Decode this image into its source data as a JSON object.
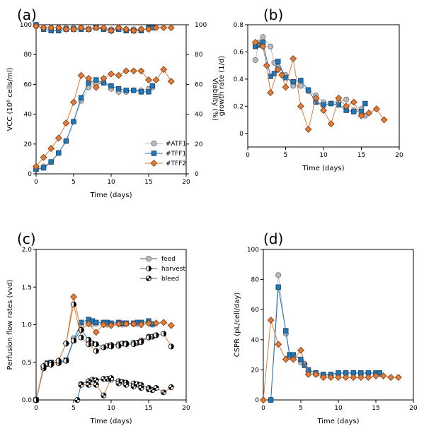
{
  "chart_data": [
    {
      "type": "line",
      "panel_label": "(a)",
      "xlabel": "Time (days)",
      "ylabel": "VCC (10⁶ cells/ml)",
      "y2label": "Viability (%)",
      "xlim": [
        0,
        20
      ],
      "ylim": [
        0,
        100
      ],
      "y2lim": [
        0,
        100
      ],
      "xticks": [
        0,
        5,
        10,
        15,
        20
      ],
      "yticks": [
        0,
        20,
        40,
        60,
        80,
        100
      ],
      "y2ticks": [
        0,
        20,
        40,
        60,
        80,
        100
      ],
      "legend_position": "bottom-right",
      "legend": [
        "#ATF1",
        "#TFF1",
        "#TFF2"
      ],
      "series": [
        {
          "name": "#ATF1",
          "color": "#b9bcbf",
          "marker": "circle",
          "axis": "y",
          "x": [
            0,
            1,
            2,
            3,
            4,
            5,
            6,
            7,
            8,
            9,
            10,
            11,
            12,
            13,
            14,
            15,
            15.5
          ],
          "y": [
            3,
            5,
            8,
            14,
            22,
            35,
            49,
            58,
            60,
            61,
            57,
            55,
            55,
            56,
            56,
            57,
            58
          ]
        },
        {
          "name": "#TFF1",
          "color": "#1f77b4",
          "marker": "square",
          "axis": "y",
          "x": [
            0,
            1,
            2,
            3,
            4,
            5,
            6,
            7,
            8,
            9,
            10,
            11,
            12,
            13,
            14,
            15,
            15.5
          ],
          "y": [
            3,
            4,
            8,
            14,
            22,
            35,
            51,
            61,
            63,
            61,
            59,
            57,
            56,
            56,
            55,
            55,
            59
          ]
        },
        {
          "name": "#TFF2",
          "color": "#e07b39",
          "marker": "diamond",
          "axis": "y",
          "x": [
            0,
            1,
            2,
            3,
            4,
            5,
            6,
            7,
            8,
            9,
            10,
            11,
            12,
            13,
            14,
            15,
            16,
            17,
            18
          ],
          "y": [
            5,
            11,
            17,
            24,
            34,
            48,
            66,
            64,
            58,
            64,
            67,
            66,
            69,
            69,
            69,
            63,
            63,
            70,
            62
          ]
        },
        {
          "name": "#ATF1",
          "color": "#b9bcbf",
          "marker": "circle",
          "axis": "y2",
          "x": [
            0,
            1,
            2,
            3,
            4,
            5,
            6,
            7,
            8,
            9,
            10,
            11,
            12,
            13,
            14,
            15,
            15.5
          ],
          "y": [
            99,
            98,
            98,
            98,
            98,
            98,
            98,
            97,
            98,
            97,
            97,
            98,
            97,
            97,
            97,
            97,
            98
          ]
        },
        {
          "name": "#TFF1",
          "color": "#1f77b4",
          "marker": "square",
          "axis": "y2",
          "x": [
            0,
            1,
            2,
            3,
            4,
            5,
            6,
            7,
            8,
            9,
            10,
            11,
            12,
            13,
            14,
            15,
            15.5
          ],
          "y": [
            100,
            97,
            96,
            96,
            97,
            97,
            97,
            97,
            98,
            97,
            96,
            97,
            96,
            96,
            96,
            98,
            98
          ]
        },
        {
          "name": "#TFF2",
          "color": "#e07b39",
          "marker": "diamond",
          "axis": "y2",
          "x": [
            0,
            1,
            2,
            3,
            4,
            5,
            6,
            7,
            8,
            9,
            10,
            11,
            12,
            13,
            14,
            15,
            16,
            17,
            18
          ],
          "y": [
            99,
            98,
            98,
            98,
            97,
            97,
            98,
            97,
            98,
            98,
            96,
            98,
            97,
            96,
            97,
            97,
            98,
            98,
            98
          ]
        }
      ]
    },
    {
      "type": "line",
      "panel_label": "(b)",
      "xlabel": "Time (days)",
      "ylabel": "growth rate (1/d)",
      "xlim": [
        0,
        20
      ],
      "ylim": [
        -0.1,
        0.8
      ],
      "xticks": [
        0,
        5,
        10,
        15,
        20
      ],
      "yticks": [
        0.0,
        0.2,
        0.4,
        0.6,
        0.8
      ],
      "series": [
        {
          "name": "#ATF1",
          "color": "#b9bcbf",
          "marker": "circle",
          "x": [
            1,
            1.5,
            2,
            3,
            3.5,
            4,
            5,
            6,
            7,
            8,
            9,
            10,
            11,
            12,
            13,
            14,
            15,
            15.5
          ],
          "y": [
            0.54,
            0.67,
            0.71,
            0.64,
            0.52,
            0.49,
            0.43,
            0.35,
            0.35,
            0.31,
            0.28,
            0.23,
            0.22,
            0.23,
            0.25,
            0.17,
            0.18,
            0.13
          ]
        },
        {
          "name": "#TFF1",
          "color": "#1f77b4",
          "marker": "square",
          "x": [
            1,
            1.5,
            2,
            3,
            3.5,
            4,
            5,
            6,
            7,
            8,
            9,
            10,
            11,
            12,
            13,
            14,
            15,
            15.5
          ],
          "y": [
            0.64,
            0.65,
            0.67,
            0.42,
            0.44,
            0.53,
            0.41,
            0.38,
            0.39,
            0.32,
            0.23,
            0.21,
            0.22,
            0.21,
            0.17,
            0.16,
            0.16,
            0.22
          ]
        },
        {
          "name": "#TFF2",
          "color": "#e07b39",
          "marker": "diamond",
          "x": [
            1,
            2,
            2.5,
            3,
            4,
            4.5,
            5,
            6,
            7,
            8,
            9,
            10,
            11,
            12,
            13,
            14,
            15,
            16,
            17,
            18
          ],
          "y": [
            0.67,
            0.64,
            0.5,
            0.3,
            0.47,
            0.43,
            0.34,
            0.55,
            0.2,
            0.03,
            0.26,
            0.17,
            0.07,
            0.26,
            0.2,
            0.23,
            0.13,
            0.15,
            0.18,
            0.1
          ]
        }
      ]
    },
    {
      "type": "line",
      "panel_label": "(c)",
      "xlabel": "Time (days)",
      "ylabel": "Perfusion flow rates (vvd)",
      "xlim": [
        0,
        20
      ],
      "ylim": [
        0,
        2.0
      ],
      "xticks": [
        0,
        5,
        10,
        15,
        20
      ],
      "yticks": [
        0.0,
        0.5,
        1.0,
        1.5,
        2.0
      ],
      "ytick_labels": [
        "0.0",
        "0.5",
        "1.0",
        "1.5",
        "2.0"
      ],
      "legend_position": "top-right",
      "legend": [
        "feed",
        "harvest",
        "bleed"
      ],
      "series": [
        {
          "name": "feed",
          "color": "#b9bcbf",
          "marker": "circle",
          "x": [
            0,
            1,
            1.5,
            2,
            3,
            4,
            5,
            6,
            7,
            7.5,
            8,
            9,
            9.5,
            10,
            11,
            11.5,
            12,
            13,
            13.5,
            14,
            15,
            15.5
          ],
          "y": [
            0,
            0.42,
            0.48,
            0.49,
            0.49,
            0.52,
            0.82,
            0.99,
            1.05,
            1.01,
            1.01,
            1.02,
            1.0,
            1.01,
            1.01,
            1.0,
            1.02,
            1.01,
            1.01,
            1.02,
            1.03,
            1.0
          ]
        },
        {
          "name": "feed",
          "color": "#1f77b4",
          "marker": "square",
          "x": [
            0,
            1,
            1.5,
            2,
            3,
            4,
            5,
            6,
            7,
            7.5,
            8,
            9,
            9.5,
            10,
            11,
            11.5,
            12,
            13,
            13.5,
            14,
            15,
            15.5
          ],
          "y": [
            0,
            0.43,
            0.49,
            0.5,
            0.5,
            0.53,
            0.79,
            1.03,
            1.07,
            1.05,
            1.03,
            1.03,
            1.03,
            1.02,
            1.03,
            1.02,
            1.02,
            1.02,
            1.03,
            1.03,
            1.05,
            1.01
          ]
        },
        {
          "name": "feed",
          "color": "#e07b39",
          "marker": "diamond",
          "x": [
            0,
            1,
            2,
            3,
            4,
            5,
            6,
            7,
            8,
            9,
            10,
            11,
            12,
            13,
            14,
            15,
            16,
            17,
            18
          ],
          "y": [
            0,
            0.45,
            0.47,
            0.52,
            0.75,
            1.37,
            0.93,
            1.01,
            0.9,
            1.0,
            0.99,
            1.01,
            1.01,
            1.01,
            1.0,
            1.02,
            1.02,
            1.03,
            0.99
          ]
        },
        {
          "name": "harvest",
          "color": "#1f77b4",
          "marker": "half",
          "x": [
            0,
            1,
            1.5,
            2,
            3,
            4,
            5,
            6,
            7,
            7.5,
            8,
            9,
            9.5,
            10,
            11,
            11.5,
            12,
            13,
            13.5,
            14,
            15,
            15.5
          ],
          "y": [
            0,
            0.42,
            0.48,
            0.49,
            0.49,
            0.52,
            0.79,
            0.93,
            0.8,
            0.75,
            0.74,
            0.7,
            0.72,
            0.73,
            0.74,
            0.75,
            0.75,
            0.76,
            0.76,
            0.79,
            0.84,
            0.84
          ]
        },
        {
          "name": "harvest",
          "color": "#e07b39",
          "marker": "half",
          "x": [
            0,
            1,
            2,
            3,
            4,
            5,
            6,
            7,
            8,
            9,
            10,
            11,
            12,
            13,
            14,
            15,
            16,
            17,
            18
          ],
          "y": [
            0,
            0.45,
            0.47,
            0.52,
            0.75,
            1.27,
            0.83,
            0.74,
            0.65,
            0.7,
            0.71,
            0.72,
            0.74,
            0.74,
            0.77,
            0.83,
            0.86,
            0.88,
            0.71
          ]
        },
        {
          "name": "bleed",
          "color": "#1f77b4",
          "marker": "quarter",
          "x": [
            5.5,
            6,
            7,
            7.5,
            8,
            9,
            9.5,
            10,
            11,
            11.5,
            12,
            13,
            13.5,
            14,
            15,
            15.5
          ],
          "y": [
            0,
            0.21,
            0.25,
            0.27,
            0.26,
            0.28,
            0.28,
            0.27,
            0.25,
            0.24,
            0.23,
            0.22,
            0.21,
            0.2,
            0.16,
            0.13
          ]
        },
        {
          "name": "bleed",
          "color": "#e07b39",
          "marker": "quarter",
          "x": [
            6,
            7,
            8,
            9,
            10,
            11,
            12,
            13,
            14,
            15,
            16,
            17,
            18
          ],
          "y": [
            0.2,
            0.2,
            0.2,
            0.06,
            0.29,
            0.22,
            0.2,
            0.18,
            0.16,
            0.14,
            0.16,
            0.1,
            0.17
          ]
        }
      ]
    },
    {
      "type": "line",
      "panel_label": "(d)",
      "xlabel": "Time (days)",
      "ylabel": "CSPR (pL/cell/day)",
      "xlim": [
        0,
        20
      ],
      "ylim": [
        0,
        100
      ],
      "xticks": [
        0,
        5,
        10,
        15,
        20
      ],
      "yticks": [
        0,
        20,
        40,
        60,
        80,
        100
      ],
      "series": [
        {
          "name": "#ATF1",
          "color": "#b9bcbf",
          "marker": "circle",
          "x": [
            1,
            2,
            3,
            3.5,
            4,
            5,
            5.5,
            6,
            7,
            8,
            9,
            10,
            11,
            12,
            13,
            14,
            15,
            15.5
          ],
          "y": [
            0,
            83,
            44,
            29,
            28,
            25,
            24,
            19,
            17,
            16,
            16,
            17,
            18,
            18,
            17,
            18,
            17,
            17
          ]
        },
        {
          "name": "#TFF1",
          "color": "#1f77b4",
          "marker": "square",
          "x": [
            1,
            2,
            3,
            3.5,
            4,
            5,
            5.5,
            6,
            7,
            8,
            9,
            10,
            11,
            12,
            13,
            14,
            15,
            15.5
          ],
          "y": [
            0,
            75,
            46,
            30,
            30,
            27,
            23,
            20,
            18,
            17,
            17,
            18,
            18,
            18,
            18,
            18,
            18,
            18
          ]
        },
        {
          "name": "#TFF2",
          "color": "#e07b39",
          "marker": "diamond",
          "x": [
            0,
            1,
            2,
            3,
            4,
            5,
            6,
            7,
            8,
            9,
            10,
            11,
            12,
            13,
            14,
            15,
            16,
            17,
            18
          ],
          "y": [
            0,
            53,
            37,
            27,
            27,
            33,
            17,
            17,
            15,
            15,
            15,
            15,
            15,
            15,
            15,
            16,
            16,
            15,
            15
          ]
        }
      ]
    }
  ]
}
